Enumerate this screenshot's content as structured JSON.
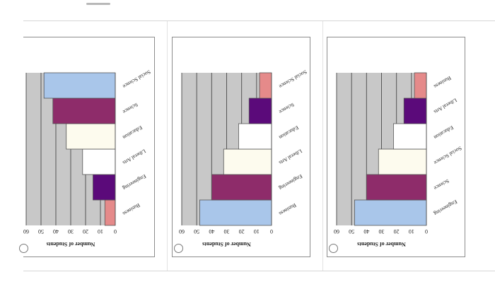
{
  "page": {
    "orientation_note": "rotated 180 degrees"
  },
  "options": [
    {
      "radio_selected": false,
      "chart_data": {
        "type": "bar",
        "orientation": "horizontal",
        "rotated_180": true,
        "categories": [
          "Business",
          "Engineering",
          "Liberal Arts",
          "Education",
          "Science",
          "Social Science"
        ],
        "values": [
          7,
          15,
          22,
          33,
          42,
          48
        ],
        "colors": [
          "#e58a8a",
          "#5b0a7a",
          "#ffffff",
          "#fdfbee",
          "#8e2c6a",
          "#a9c6ea"
        ],
        "xlabel": "Number of Students",
        "ticks": [
          "0",
          "10",
          "20",
          "30",
          "40",
          "50",
          "60"
        ],
        "xlim": [
          0,
          60
        ],
        "grid": true,
        "plot_background": "#c8c8c8"
      }
    },
    {
      "radio_selected": false,
      "chart_data": {
        "type": "bar",
        "orientation": "horizontal",
        "rotated_180": true,
        "categories": [
          "Business",
          "Engineering",
          "Liberal Arts",
          "Education",
          "Science",
          "Social Science"
        ],
        "values": [
          48,
          40,
          32,
          22,
          15,
          8
        ],
        "colors": [
          "#a9c6ea",
          "#8e2c6a",
          "#fdfbee",
          "#ffffff",
          "#5b0a7a",
          "#e58a8a"
        ],
        "xlabel": "Number of Students",
        "ticks": [
          "0",
          "10",
          "20",
          "30",
          "40",
          "50",
          "60"
        ],
        "xlim": [
          0,
          60
        ],
        "grid": true,
        "plot_background": "#c8c8c8"
      }
    },
    {
      "radio_selected": false,
      "chart_data": {
        "type": "bar",
        "orientation": "horizontal",
        "rotated_180": true,
        "categories": [
          "Engineering",
          "Science",
          "Social Science",
          "Education",
          "Liberal Arts",
          "Business"
        ],
        "values": [
          48,
          40,
          32,
          22,
          15,
          8
        ],
        "colors": [
          "#a9c6ea",
          "#8e2c6a",
          "#fdfbee",
          "#ffffff",
          "#5b0a7a",
          "#e58a8a"
        ],
        "xlabel": "Number of Students",
        "ticks": [
          "0",
          "10",
          "20",
          "30",
          "40",
          "50",
          "60"
        ],
        "xlim": [
          0,
          60
        ],
        "grid": true,
        "plot_background": "#c8c8c8"
      }
    }
  ]
}
